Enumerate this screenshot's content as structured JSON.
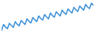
{
  "chart_data": {
    "type": "line",
    "tick_labels": false,
    "grid": false,
    "color": "#3a8fd6",
    "x": [
      1,
      2,
      3,
      4,
      5,
      6,
      7,
      8,
      9,
      10,
      11,
      12,
      13,
      14,
      15,
      16,
      17,
      18,
      19,
      20,
      21,
      22,
      23,
      24,
      25,
      26,
      27,
      28,
      29,
      30,
      31,
      32,
      33,
      34,
      35,
      36,
      37,
      38,
      39,
      40,
      41,
      42,
      43,
      44,
      45,
      46,
      47,
      48
    ],
    "values": [
      10,
      28,
      20,
      15,
      32,
      25,
      19,
      37,
      29,
      24,
      41,
      34,
      28,
      46,
      38,
      33,
      50,
      43,
      37,
      55,
      47,
      42,
      59,
      52,
      46,
      64,
      56,
      51,
      68,
      61,
      55,
      73,
      65,
      60,
      77,
      70,
      64,
      82,
      74,
      69,
      86,
      79,
      73,
      91,
      83,
      78,
      95,
      88
    ],
    "xlim": [
      1,
      48
    ],
    "ylim": [
      0,
      100
    ]
  }
}
